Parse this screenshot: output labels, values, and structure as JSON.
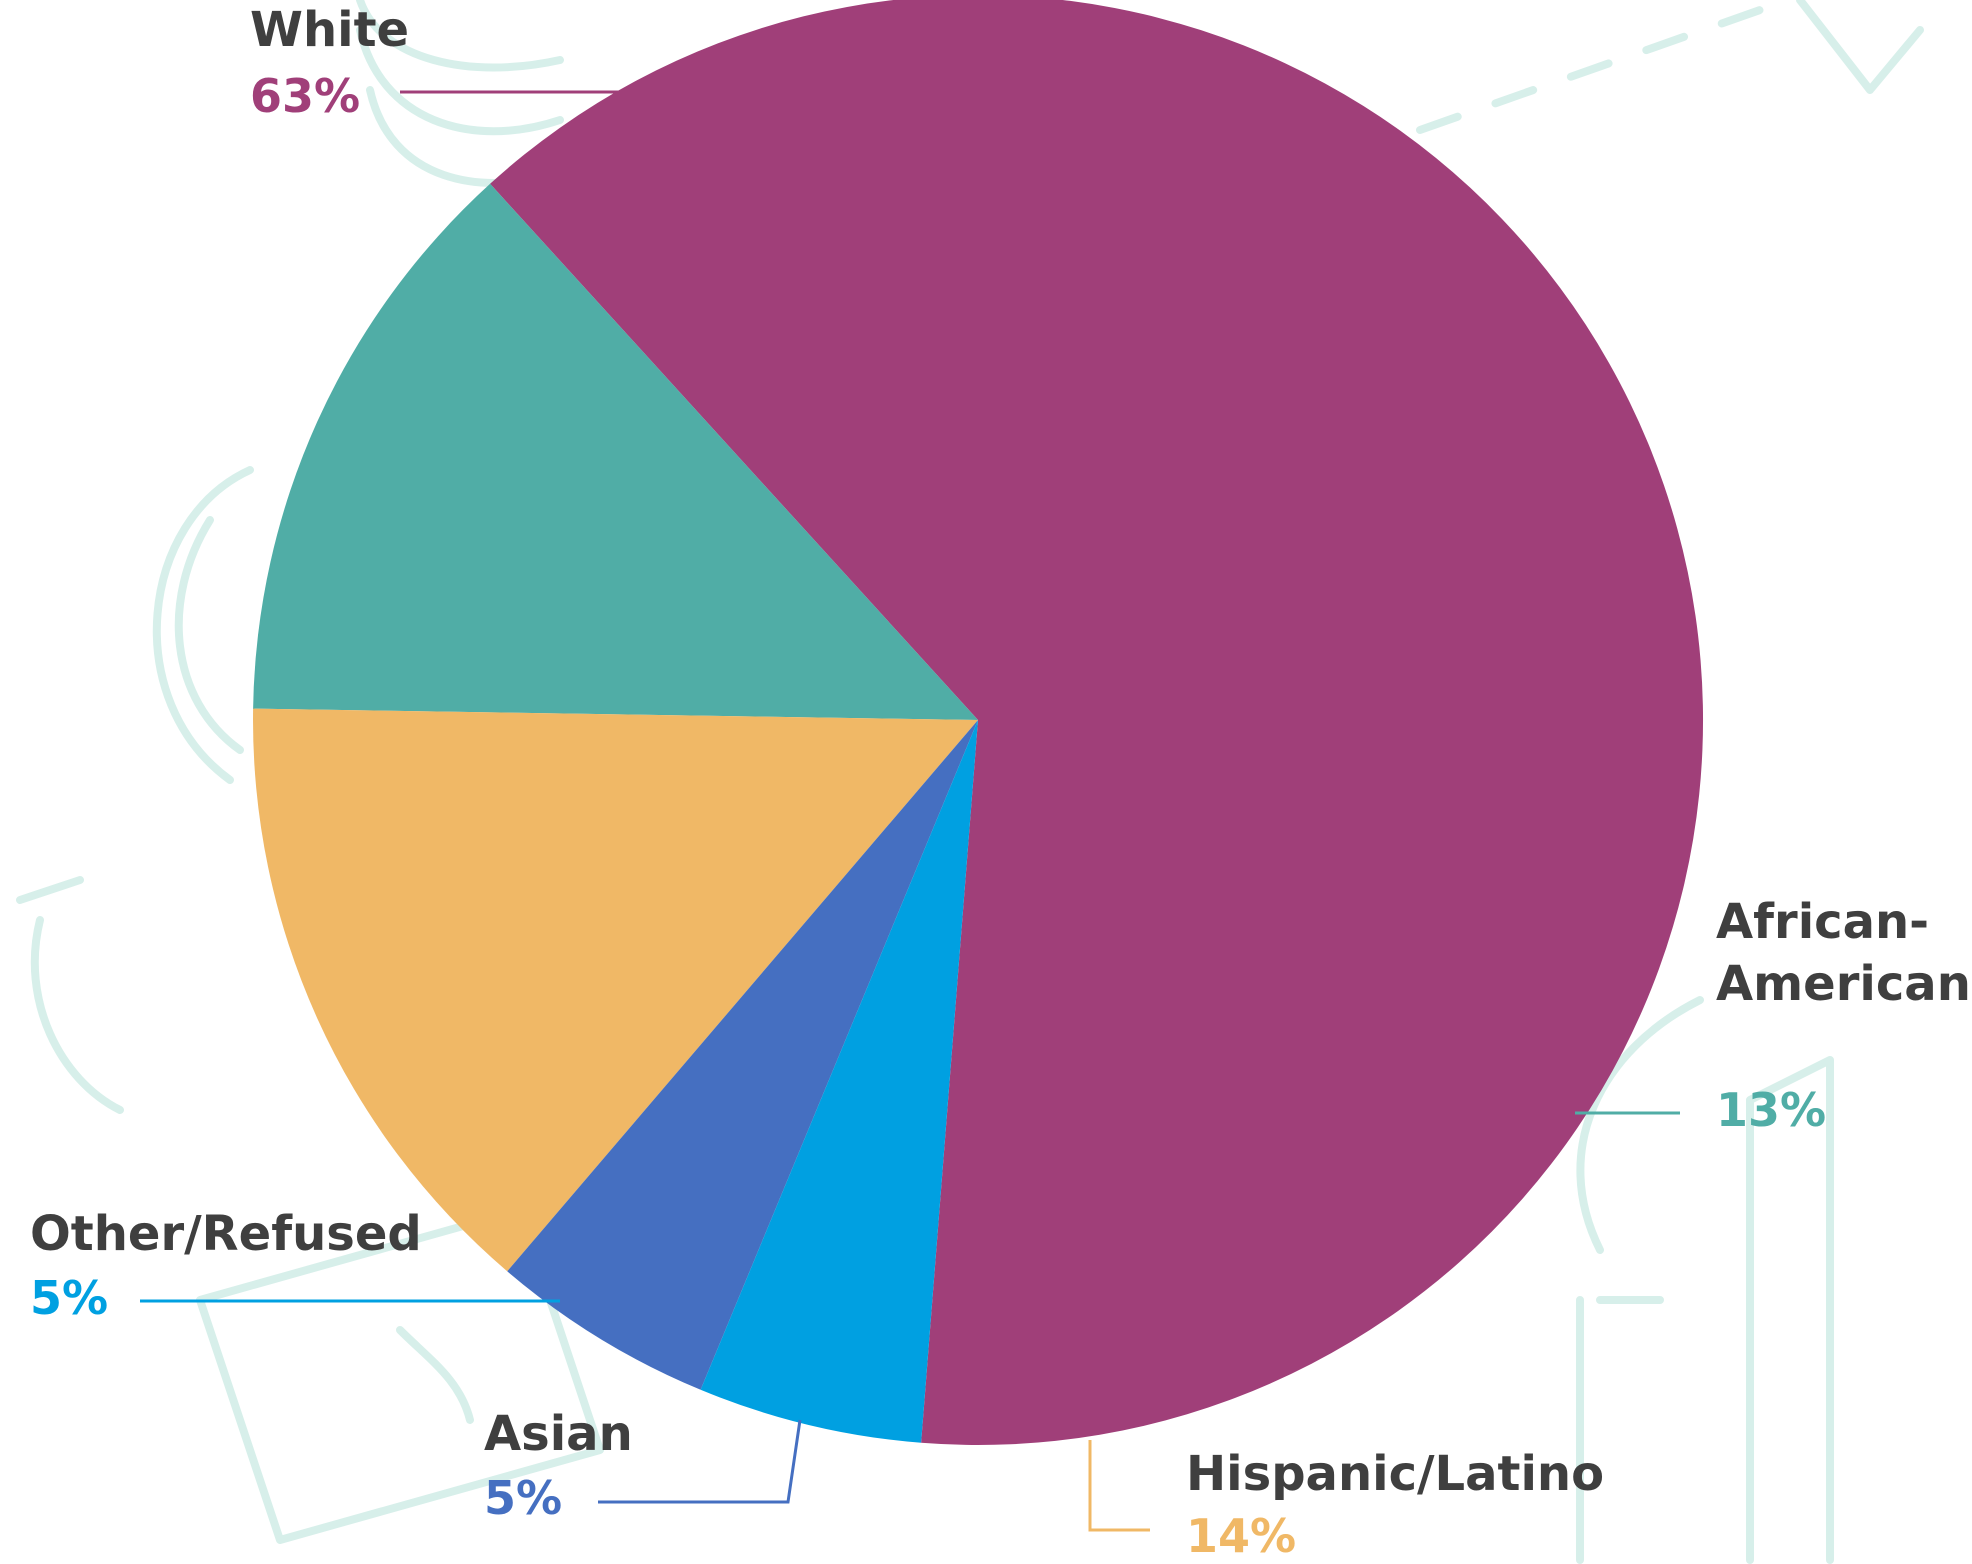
{
  "chart_data": {
    "type": "pie",
    "title": "",
    "slices": [
      {
        "label": "White",
        "value": 63,
        "value_label": "63%",
        "color": "#a03f79"
      },
      {
        "label": "African-American",
        "label_lines": [
          "African-",
          "American"
        ],
        "value": 13,
        "value_label": "13%",
        "color": "#50ada6"
      },
      {
        "label": "Hispanic/Latino",
        "value": 14,
        "value_label": "14%",
        "color": "#f0b866"
      },
      {
        "label": "Asian",
        "value": 5,
        "value_label": "5%",
        "color": "#456fc1"
      },
      {
        "label": "Other/Refused",
        "value": 5,
        "value_label": "5%",
        "color": "#00a0e1"
      }
    ],
    "legend": "none"
  },
  "colors": {
    "label_text": "#3f3f3f",
    "background_decoration": "#d7efea"
  }
}
